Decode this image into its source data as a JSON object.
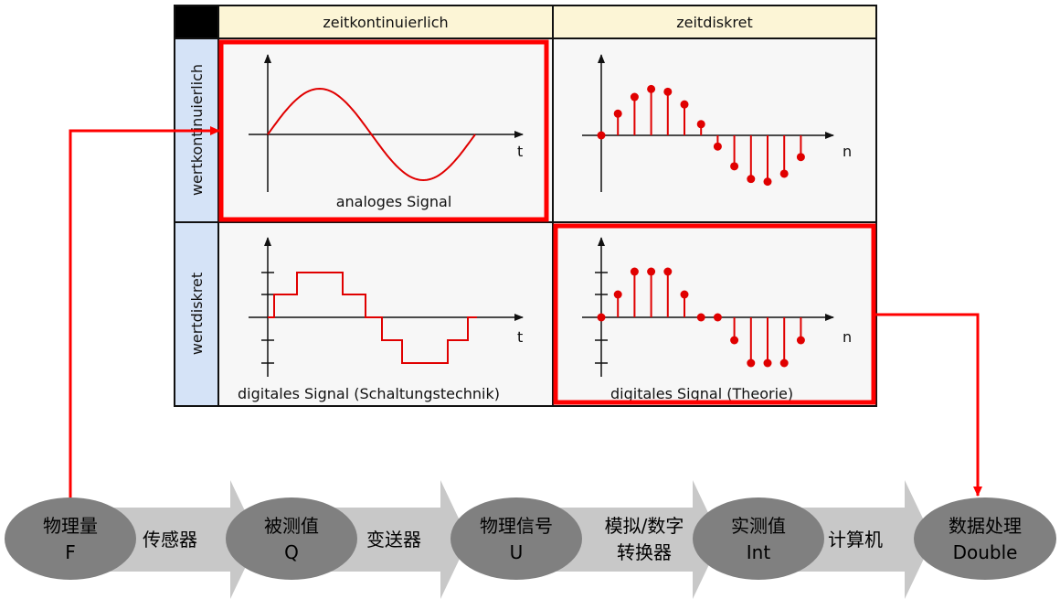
{
  "table": {
    "col_headers": [
      "zeitkontinuierlich",
      "zeitdiskret"
    ],
    "row_headers": [
      "wertkontinuierlich",
      "wertdiskret"
    ],
    "cells": {
      "analog": {
        "caption": "analoges Signal",
        "axis": "t"
      },
      "discrete_time": {
        "caption": "",
        "axis": "n"
      },
      "digital_circuit": {
        "caption": "digitales Signal (Schaltungstechnik)",
        "axis": "t"
      },
      "digital_theory": {
        "caption": "digitales Signal (Theorie)",
        "axis": "n"
      }
    }
  },
  "flow": {
    "nodes": [
      {
        "line1": "物理量",
        "line2": "F"
      },
      {
        "line1": "被测值",
        "line2": "Q"
      },
      {
        "line1": "物理信号",
        "line2": "U"
      },
      {
        "line1": "实测值",
        "line2": "Int"
      },
      {
        "line1": "数据处理",
        "line2": "Double"
      }
    ],
    "arrows": [
      {
        "line1": "传感器",
        "line2": ""
      },
      {
        "line1": "变送器",
        "line2": ""
      },
      {
        "line1": "模拟/数字",
        "line2": "转换器"
      },
      {
        "line1": "计算机",
        "line2": ""
      }
    ]
  },
  "colors": {
    "signal": "#e00000",
    "highlight": "#ff0000",
    "header_col": "#fcf5d6",
    "header_row": "#d5e3f7",
    "cell_bg": "#f7f7f7",
    "node": "#808080",
    "arrow": "#c8c8c8"
  }
}
